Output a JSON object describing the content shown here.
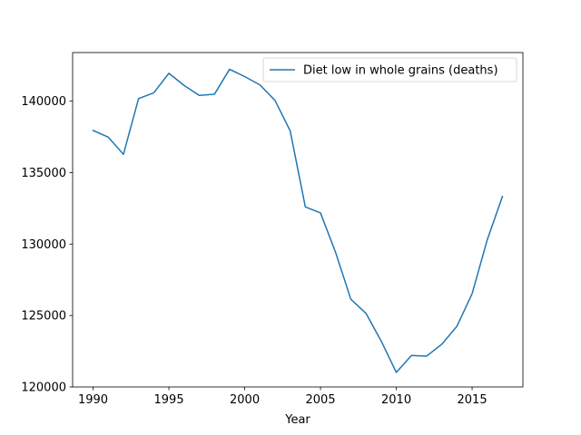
{
  "chart_data": {
    "type": "line",
    "title": "",
    "xlabel": "Year",
    "ylabel": "",
    "xlim": [
      1988.65,
      2018.35
    ],
    "ylim": [
      120000,
      143400
    ],
    "xticks": [
      1990,
      1995,
      2000,
      2005,
      2010,
      2015
    ],
    "yticks": [
      120000,
      125000,
      130000,
      135000,
      140000
    ],
    "grid": false,
    "legend_position": "top-right",
    "series": [
      {
        "name": "Diet low in whole grains (deaths)",
        "color": "#1f77b4",
        "x": [
          1990,
          1991,
          1992,
          1993,
          1994,
          1995,
          1996,
          1997,
          1998,
          1999,
          2000,
          2001,
          2002,
          2003,
          2004,
          2005,
          2006,
          2007,
          2008,
          2009,
          2010,
          2011,
          2012,
          2013,
          2014,
          2015,
          2016,
          2017
        ],
        "y": [
          137950,
          137480,
          136280,
          140180,
          140580,
          141950,
          141100,
          140400,
          140480,
          142230,
          141720,
          141140,
          140050,
          137920,
          132600,
          132180,
          129400,
          126140,
          125150,
          123220,
          121020,
          122200,
          122160,
          122990,
          124250,
          126530,
          130300,
          133330
        ]
      }
    ]
  }
}
